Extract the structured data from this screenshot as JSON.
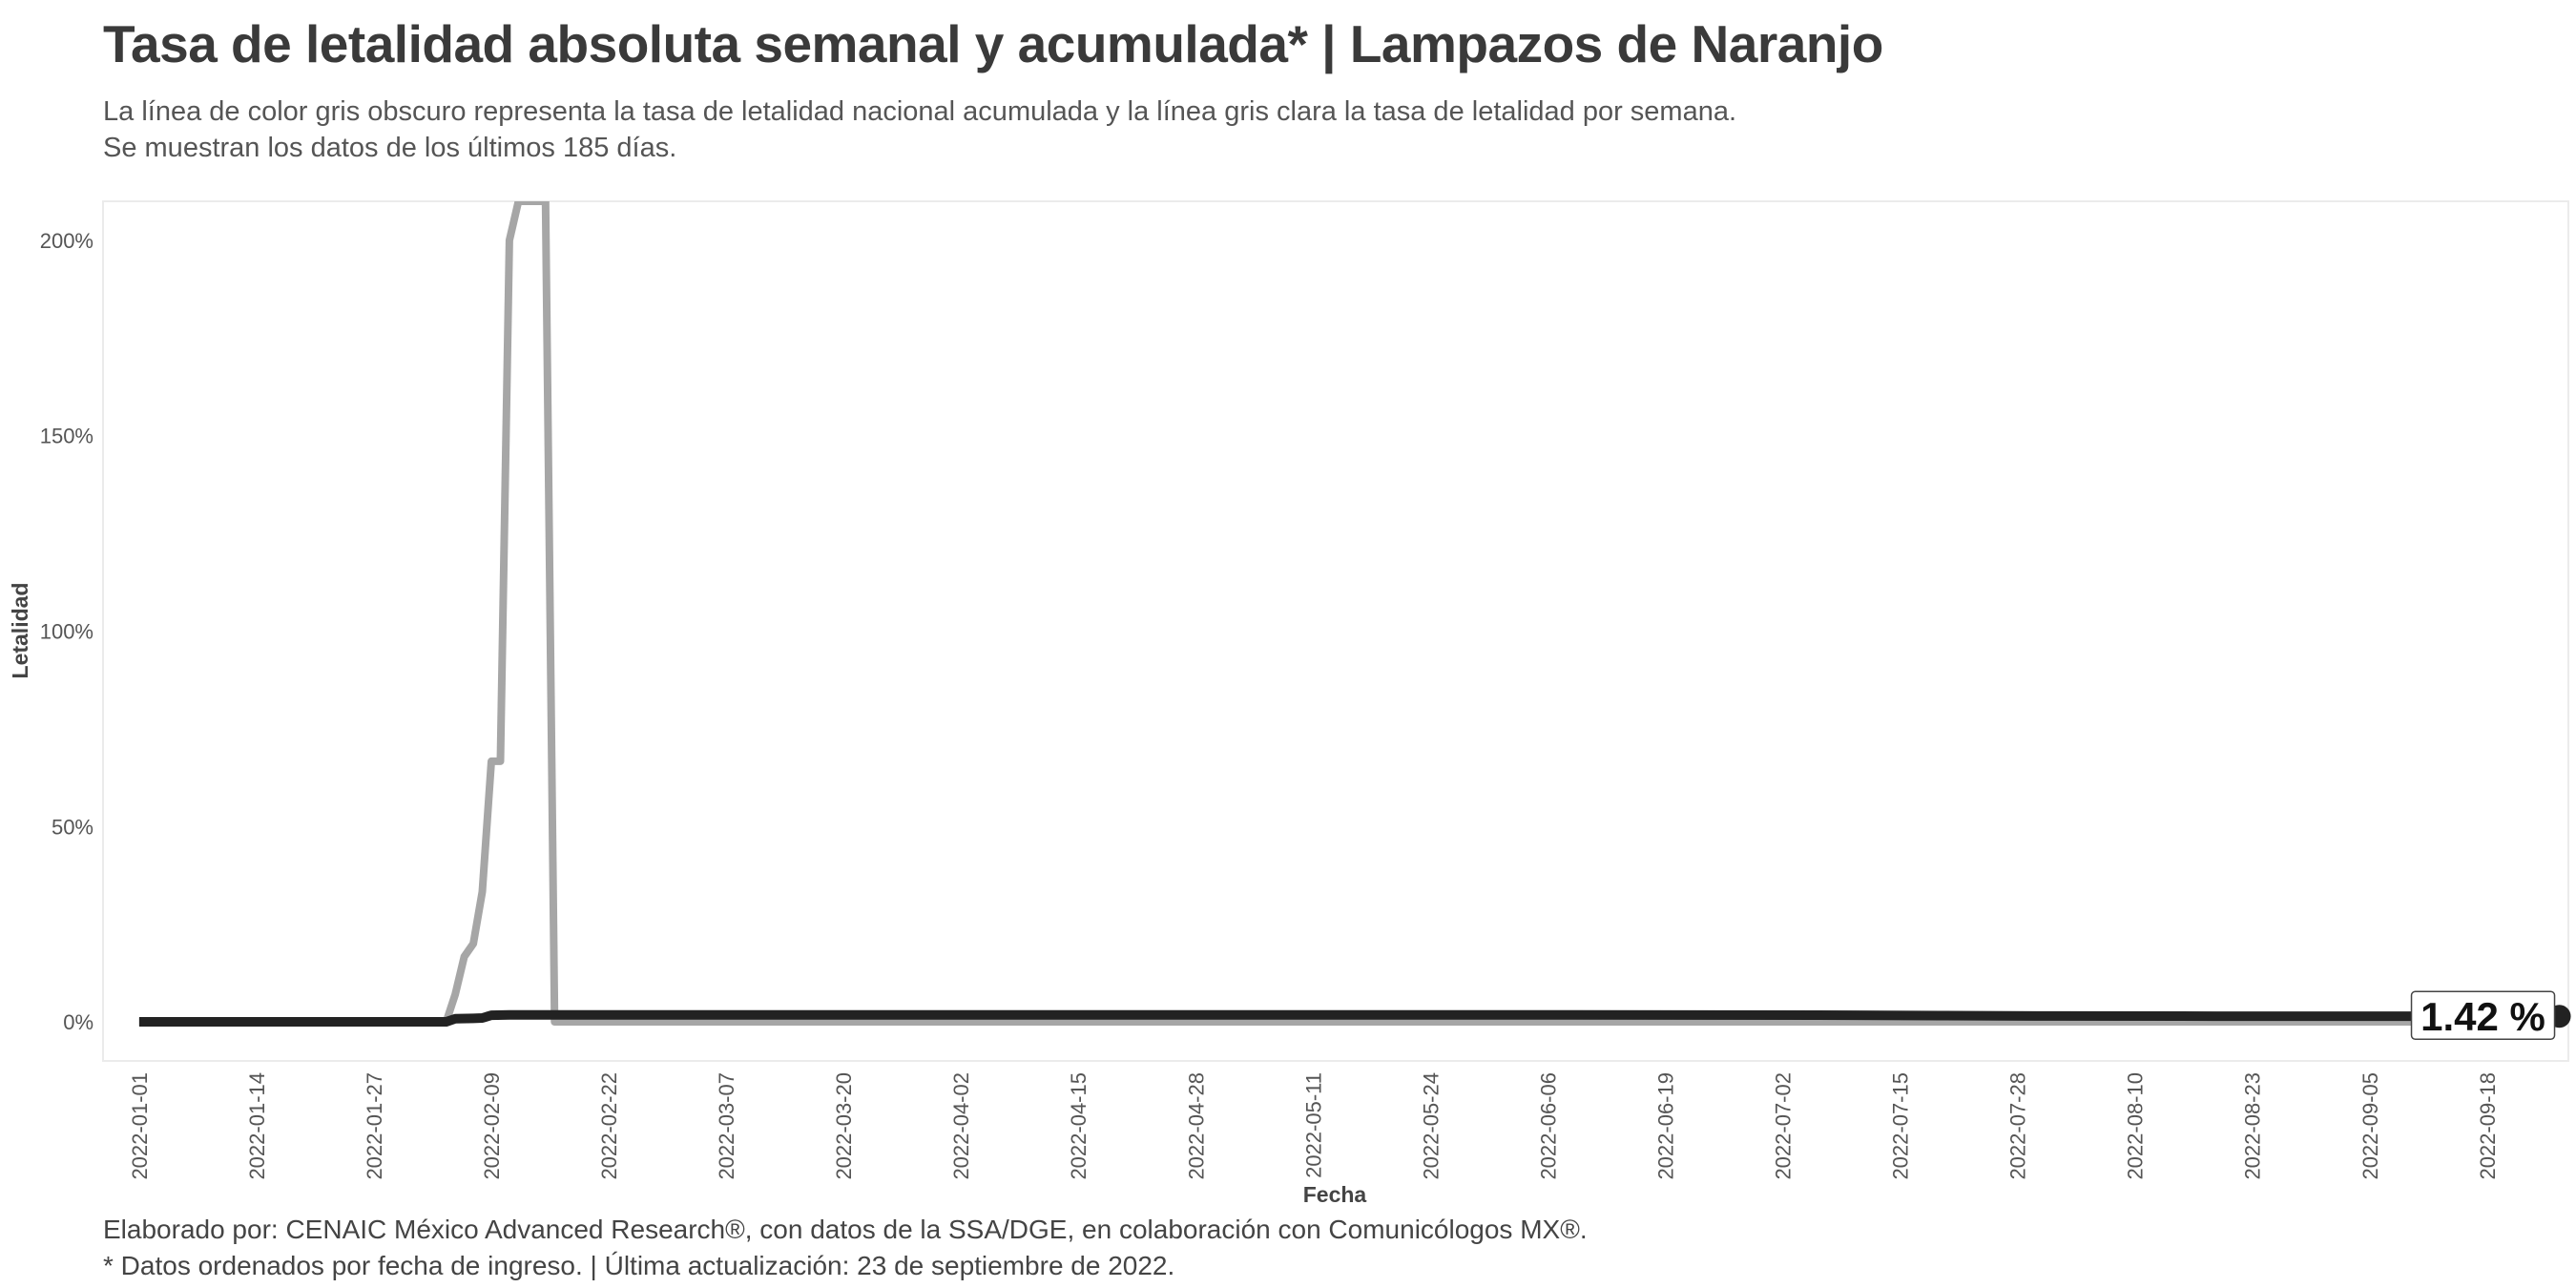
{
  "chart_data": {
    "type": "line",
    "title": "Tasa de letalidad absoluta semanal y acumulada* | Lampazos de Naranjo",
    "subtitle_lines": [
      "La línea de color gris obscuro representa la tasa de letalidad nacional acumulada y la línea gris clara la tasa de letalidad por semana.",
      "Se muestran los datos de los últimos 185 días."
    ],
    "xlabel": "Fecha",
    "ylabel": "Letalidad",
    "x_start": "2022-01-01",
    "x_end": "2022-09-23",
    "xlim_days": [
      -4,
      269
    ],
    "ylim": [
      -10,
      210
    ],
    "y_ticks": [
      0,
      50,
      100,
      150,
      200
    ],
    "y_tick_labels": [
      "0%",
      "50%",
      "100%",
      "150%",
      "200%"
    ],
    "x_ticks": [
      "2022-01-01",
      "2022-01-14",
      "2022-01-27",
      "2022-02-09",
      "2022-02-22",
      "2022-03-07",
      "2022-03-20",
      "2022-04-02",
      "2022-04-15",
      "2022-04-28",
      "2022-05-11",
      "2022-05-24",
      "2022-06-06",
      "2022-06-19",
      "2022-07-02",
      "2022-07-15",
      "2022-07-28",
      "2022-08-10",
      "2022-08-23",
      "2022-09-05",
      "2022-09-18"
    ],
    "series": [
      {
        "name": "Tasa de letalidad por semana",
        "color": "#a6a6a6",
        "points": [
          [
            0,
            0
          ],
          [
            34,
            0
          ],
          [
            35,
            7
          ],
          [
            36,
            16.7
          ],
          [
            37,
            20
          ],
          [
            38,
            33.3
          ],
          [
            39,
            66.7
          ],
          [
            40,
            66.7
          ],
          [
            41,
            200
          ],
          [
            42,
            210
          ],
          [
            45,
            210
          ],
          [
            46,
            0
          ],
          [
            268,
            0
          ]
        ]
      },
      {
        "name": "Tasa de letalidad acumulada",
        "color": "#222222",
        "points": [
          [
            0,
            0
          ],
          [
            34,
            0
          ],
          [
            35,
            0.8
          ],
          [
            37,
            0.9
          ],
          [
            38,
            1.0
          ],
          [
            39,
            1.7
          ],
          [
            41,
            1.8
          ],
          [
            60,
            1.8
          ],
          [
            150,
            1.8
          ],
          [
            190,
            1.7
          ],
          [
            200,
            1.6
          ],
          [
            210,
            1.5
          ],
          [
            230,
            1.45
          ],
          [
            268,
            1.42
          ]
        ]
      }
    ],
    "end_label": "1.42 %",
    "end_value": 1.42
  },
  "caption_lines": [
    "Elaborado por: CENAIC México Advanced Research®, con datos de la SSA/DGE, en colaboración con Comunicólogos MX®.",
    "* Datos ordenados por fecha de ingreso. | Última actualización: 23 de septiembre de 2022."
  ]
}
